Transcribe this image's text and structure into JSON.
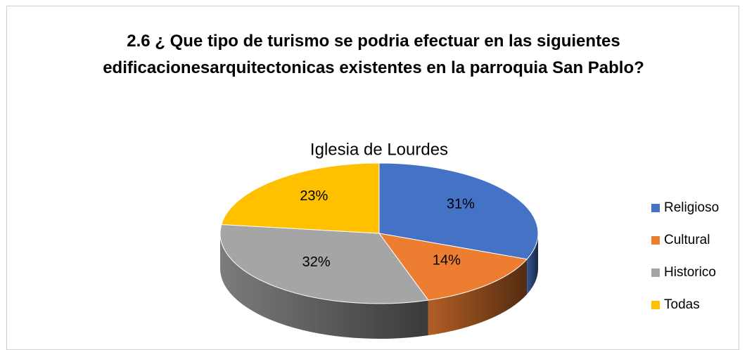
{
  "chart_data": {
    "type": "pie3d",
    "title": "2.6 ¿ Que tipo de turismo se podria efectuar en las siguientes edificacionesarquitectonicas existentes en la parroquia San Pablo?",
    "subtitle": "Iglesia de Lourdes",
    "categories": [
      "Religioso",
      "Cultural",
      "Historico",
      "Todas"
    ],
    "values": [
      31,
      14,
      32,
      23
    ],
    "value_labels": [
      "31%",
      "14%",
      "32%",
      "23%"
    ],
    "colors": [
      "#4472c4",
      "#ed7d31",
      "#a5a5a5",
      "#ffc000"
    ],
    "legend": "right"
  }
}
